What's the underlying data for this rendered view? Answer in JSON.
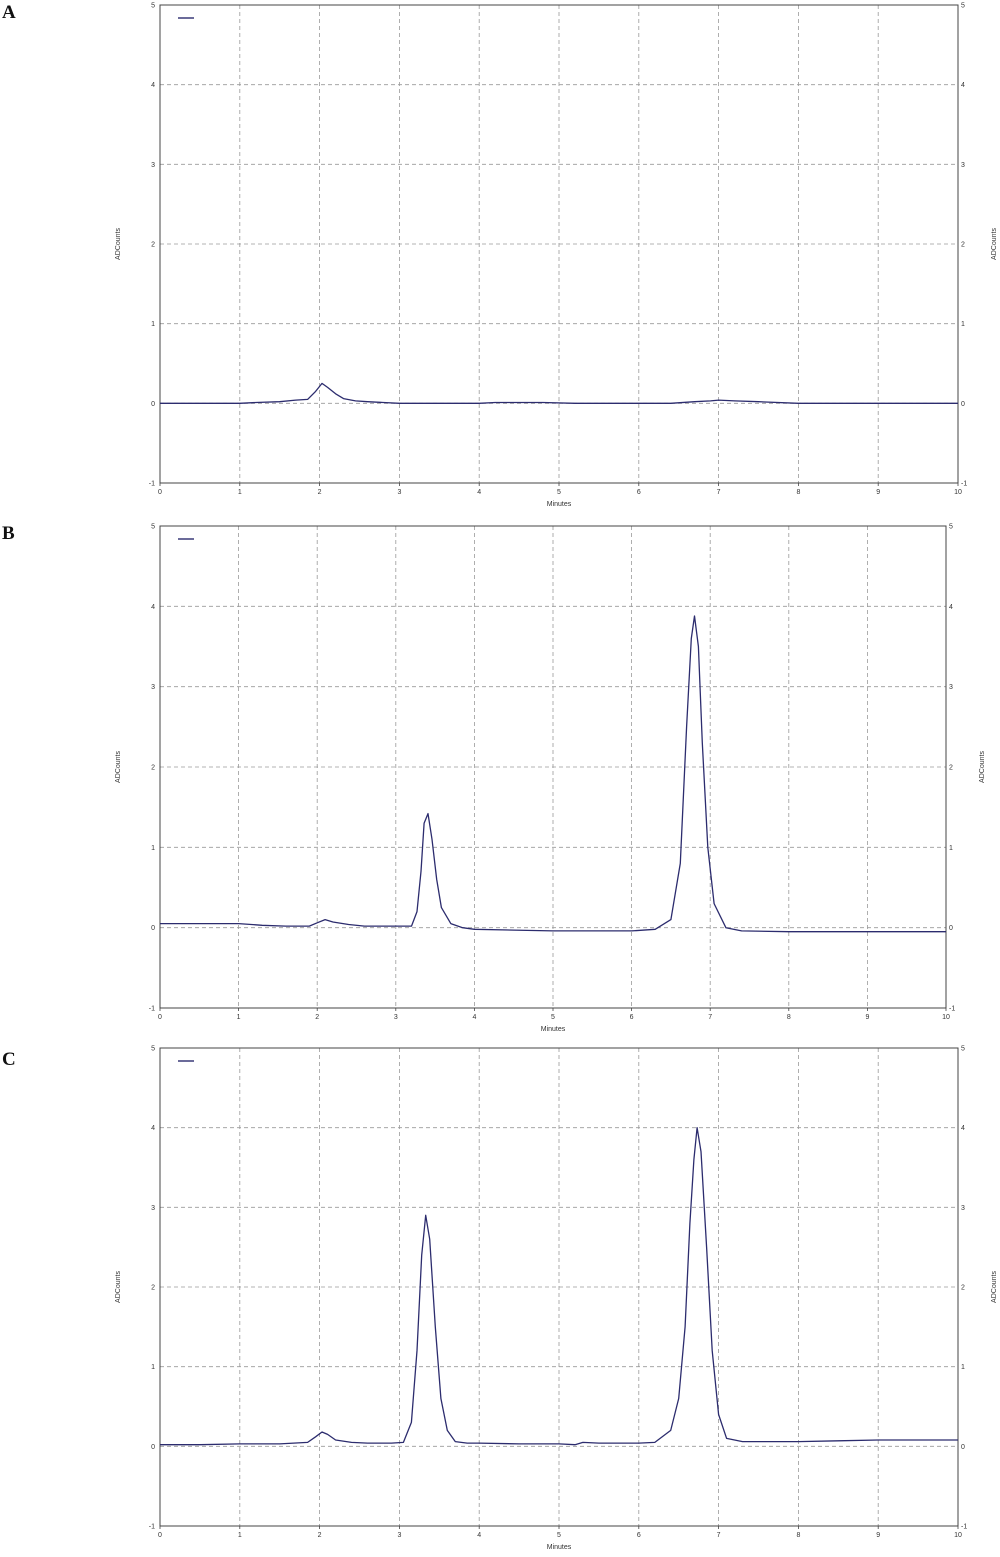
{
  "chart_data": [
    {
      "panel": "A",
      "type": "line",
      "xlabel": "Minutes",
      "ylabel": "ADCounts",
      "xlim": [
        0,
        10
      ],
      "ylim": [
        -1,
        5
      ],
      "x_ticks": [
        "0",
        "1",
        "2",
        "3",
        "4",
        "5",
        "6",
        "7",
        "8",
        "9",
        "10"
      ],
      "y_ticks": [
        "-1",
        "0",
        "1",
        "2",
        "3",
        "4",
        "5"
      ],
      "grid": true,
      "legend": "top-left",
      "series": [
        {
          "color": "#2c2c6e",
          "x": [
            0,
            0.5,
            1,
            1.2,
            1.5,
            1.7,
            1.85,
            1.95,
            2.03,
            2.1,
            2.2,
            2.3,
            2.45,
            2.6,
            2.8,
            3,
            3.3,
            3.6,
            4,
            4.2,
            4.5,
            4.8,
            5.2,
            5.6,
            6,
            6.4,
            6.7,
            6.9,
            7,
            7.2,
            7.5,
            8,
            8.5,
            9,
            9.5,
            10
          ],
          "y": [
            0,
            0,
            0,
            0.01,
            0.02,
            0.04,
            0.05,
            0.15,
            0.25,
            0.2,
            0.12,
            0.06,
            0.03,
            0.02,
            0.01,
            0,
            0,
            0,
            0,
            0.01,
            0.01,
            0.01,
            0,
            0,
            0,
            0,
            0.02,
            0.03,
            0.04,
            0.03,
            0.02,
            0,
            0,
            0,
            0,
            0
          ]
        }
      ]
    },
    {
      "panel": "B",
      "type": "line",
      "xlabel": "Minutes",
      "ylabel": "ADCounts",
      "xlim": [
        0,
        10
      ],
      "ylim": [
        -1,
        5
      ],
      "x_ticks": [
        "0",
        "1",
        "2",
        "3",
        "4",
        "5",
        "6",
        "7",
        "8",
        "9",
        "10"
      ],
      "y_ticks": [
        "-1",
        "0",
        "1",
        "2",
        "3",
        "4",
        "5"
      ],
      "grid": true,
      "legend": "top-left",
      "series": [
        {
          "color": "#2c2c6e",
          "x": [
            0,
            0.5,
            1,
            1.3,
            1.6,
            1.9,
            2,
            2.1,
            2.2,
            2.4,
            2.6,
            3,
            3.2,
            3.27,
            3.32,
            3.36,
            3.41,
            3.46,
            3.52,
            3.58,
            3.7,
            3.85,
            4,
            4.5,
            5,
            5.5,
            6,
            6.3,
            6.5,
            6.62,
            6.7,
            6.76,
            6.8,
            6.85,
            6.9,
            6.97,
            7.05,
            7.2,
            7.4,
            8,
            8.5,
            9,
            9.5,
            10
          ],
          "y": [
            0.05,
            0.05,
            0.05,
            0.03,
            0.02,
            0.02,
            0.06,
            0.1,
            0.07,
            0.04,
            0.02,
            0.02,
            0.02,
            0.2,
            0.7,
            1.3,
            1.42,
            1.1,
            0.6,
            0.25,
            0.05,
            0,
            -0.02,
            -0.03,
            -0.04,
            -0.04,
            -0.04,
            -0.02,
            0.1,
            0.8,
            2.5,
            3.6,
            3.88,
            3.5,
            2.3,
            1.0,
            0.3,
            0,
            -0.04,
            -0.05,
            -0.05,
            -0.05,
            -0.05,
            -0.05
          ]
        }
      ]
    },
    {
      "panel": "C",
      "type": "line",
      "xlabel": "Minutes",
      "ylabel": "ADCounts",
      "xlim": [
        0,
        10
      ],
      "ylim": [
        -1,
        5
      ],
      "x_ticks": [
        "0",
        "1",
        "2",
        "3",
        "4",
        "5",
        "6",
        "7",
        "8",
        "9",
        "10"
      ],
      "y_ticks": [
        "-1",
        "0",
        "1",
        "2",
        "3",
        "4",
        "5"
      ],
      "grid": true,
      "legend": "top-left",
      "series": [
        {
          "color": "#2c2c6e",
          "x": [
            0,
            0.5,
            1,
            1.5,
            1.85,
            1.95,
            2.03,
            2.1,
            2.2,
            2.4,
            2.6,
            2.9,
            3.05,
            3.15,
            3.22,
            3.28,
            3.33,
            3.38,
            3.45,
            3.52,
            3.6,
            3.7,
            3.85,
            4,
            4.5,
            5,
            5.2,
            5.3,
            5.5,
            6,
            6.2,
            6.4,
            6.5,
            6.58,
            6.64,
            6.69,
            6.73,
            6.78,
            6.85,
            6.92,
            7,
            7.1,
            7.3,
            8,
            8.5,
            9,
            9.5,
            10
          ],
          "y": [
            0.02,
            0.02,
            0.03,
            0.03,
            0.05,
            0.12,
            0.18,
            0.15,
            0.08,
            0.05,
            0.04,
            0.04,
            0.05,
            0.3,
            1.2,
            2.4,
            2.9,
            2.6,
            1.5,
            0.6,
            0.2,
            0.06,
            0.04,
            0.04,
            0.03,
            0.03,
            0.02,
            0.05,
            0.04,
            0.04,
            0.05,
            0.2,
            0.6,
            1.5,
            2.8,
            3.6,
            4.0,
            3.7,
            2.5,
            1.2,
            0.4,
            0.1,
            0.06,
            0.06,
            0.07,
            0.08,
            0.08,
            0.08
          ]
        }
      ]
    }
  ]
}
